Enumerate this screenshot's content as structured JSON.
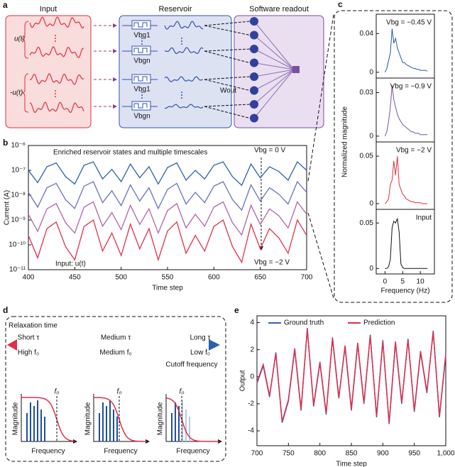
{
  "panel_labels": [
    "a",
    "b",
    "c",
    "d",
    "e"
  ],
  "diagram_a": {
    "input_title": "Input",
    "reservoir_title": "Reservoir",
    "readout_title": "Software readout",
    "input_labels": [
      "u(t)",
      "-u(t)"
    ],
    "gate_labels": [
      "Vbg1",
      "Vbgn",
      "Vbg1",
      "Vbgn"
    ],
    "weight_label": "Wout"
  },
  "panel_c": {
    "ylabel": "Normalized magnitude",
    "xlabel": "Frequency (Hz)"
  },
  "diagram_d": {
    "title": "Relaxation time",
    "tau_labels": [
      "Short τ",
      "Medium τ",
      "Long τ"
    ],
    "f0_labels": [
      "High f₀",
      "Medium f₀",
      "Low f₀"
    ],
    "cutoff_label": "Cutoff frequency",
    "plot_ylabels": [
      "Magnitude",
      "Magnitude",
      "Magnitude"
    ],
    "plot_xlabels": [
      "Frequency",
      "Frequency",
      "Frequency"
    ],
    "plot_markers": [
      "f₀",
      "f₀",
      "f₀"
    ]
  },
  "chart_data": [
    {
      "type": "line",
      "title": "Enriched reservoir states and multiple timescales",
      "annotations": [
        "Vbg = 0 V",
        "Vbg = −2 V",
        "Input: u(t)"
      ],
      "xlabel": "Time step",
      "ylabel": "Current (A)",
      "log_y": true,
      "x": [
        400,
        410,
        420,
        430,
        440,
        450,
        460,
        470,
        480,
        490,
        500,
        510,
        520,
        530,
        540,
        550,
        560,
        570,
        580,
        590,
        600,
        610,
        620,
        630,
        640,
        650,
        660,
        670,
        680,
        690,
        700
      ],
      "series": [
        {
          "color": "#2a62b0",
          "values": [
            1e-07,
            3.2e-08,
            1.4e-07,
            2e-07,
            5.6e-08,
            2.8e-08,
            1.6e-07,
            2.2e-07,
            4.5e-08,
            1.1e-07,
            3.5e-08,
            1.8e-07,
            5e-08,
            1.4e-07,
            2.8e-08,
            1.3e-07,
            2e-07,
            4e-08,
            1e-07,
            4.5e-08,
            1.6e-07,
            2.2e-07,
            5.6e-08,
            2.5e-08,
            1.8e-07,
            5e-08,
            1.4e-07,
            9e-08,
            4e-08,
            2.2e-07,
            1e-07
          ]
        },
        {
          "color": "#6a6fbf",
          "values": [
            1.3e-08,
            3.3e-09,
            2e-08,
            3e-08,
            6.6e-09,
            2.9e-09,
            2.3e-08,
            3.5e-08,
            5e-09,
            1.5e-08,
            3.8e-09,
            2.6e-08,
            5.8e-09,
            2e-08,
            2.9e-09,
            1.7e-08,
            3e-08,
            4.4e-09,
            1.3e-08,
            5e-09,
            2.3e-08,
            3.5e-08,
            6.6e-09,
            2.5e-09,
            2.6e-08,
            5.8e-09,
            2e-08,
            1.1e-08,
            4.4e-09,
            3.5e-08,
            1.3e-08
          ]
        },
        {
          "color": "#b063a8",
          "values": [
            1.7e-09,
            3.5e-10,
            2.8e-09,
            4.6e-09,
            7.8e-10,
            3e-10,
            3.3e-09,
            5.4e-09,
            5.6e-10,
            2e-09,
            4.1e-10,
            3.9e-09,
            6.6e-10,
            2.8e-09,
            3e-10,
            2.4e-09,
            4.6e-09,
            4.8e-10,
            1.7e-09,
            5.6e-10,
            3.3e-09,
            5.4e-09,
            7.8e-10,
            2.5e-10,
            3.9e-09,
            6.6e-10,
            2.8e-09,
            1.5e-09,
            4.8e-10,
            5.4e-09,
            1.7e-09
          ]
        },
        {
          "color": "#e0304a",
          "values": [
            2.4e-10,
            3e-11,
            4.5e-10,
            8.3e-10,
            8.5e-11,
            2.5e-11,
            5.5e-10,
            1e-09,
            5.6e-11,
            3e-10,
            3.7e-11,
            6.8e-10,
            6.9e-11,
            4.5e-10,
            2.5e-11,
            3.6e-10,
            8.3e-10,
            4.6e-11,
            2.4e-10,
            5.6e-11,
            5.5e-10,
            1e-09,
            8.5e-11,
            2e-11,
            6.8e-10,
            6.9e-11,
            4.5e-10,
            1.9e-10,
            4.6e-11,
            1e-09,
            2.4e-10
          ]
        }
      ],
      "xlim": [
        400,
        700
      ],
      "ylim": [
        1e-11,
        1e-06
      ],
      "xticks": [
        400,
        450,
        500,
        550,
        600,
        650,
        700
      ],
      "yticks": [
        {
          "value": 1e-11,
          "label": "10⁻¹¹"
        },
        {
          "value": 1e-10,
          "label": "10⁻¹⁰"
        },
        {
          "value": 1e-09,
          "label": "10⁻⁹"
        },
        {
          "value": 1e-08,
          "label": "10⁻⁸"
        },
        {
          "value": 1e-07,
          "label": "10⁻⁷"
        },
        {
          "value": 1e-06,
          "label": "10⁻⁶"
        }
      ]
    },
    {
      "type": "line",
      "annotation": "Vbg = −0.45 V",
      "x": [
        0,
        0.5,
        1,
        1.5,
        2,
        2.5,
        3,
        3.5,
        4,
        4.5,
        5,
        5.5,
        6,
        6.5,
        7,
        7.5,
        8,
        8.5,
        9,
        9.5,
        10,
        10.5,
        11,
        11.5,
        12
      ],
      "series": [
        {
          "color": "#2456a8",
          "values": [
            0,
            0.004,
            0.012,
            0.02,
            0.045,
            0.03,
            0.035,
            0.025,
            0.02,
            0.015,
            0.01,
            0.01,
            0.008,
            0.007,
            0.006,
            0.005,
            0.004,
            0.004,
            0.003,
            0.003,
            0.002,
            0.002,
            0.002,
            0.002,
            0.001
          ]
        }
      ],
      "xlim": [
        -2.5,
        14
      ],
      "ylim": [
        -0.006,
        0.06
      ],
      "yticks": [
        0,
        0.04
      ]
    },
    {
      "type": "line",
      "annotation": "Vbg = −0.9 V",
      "x": [
        0,
        0.5,
        1,
        1.5,
        2,
        2.5,
        3,
        3.5,
        4,
        4.5,
        5,
        5.5,
        6,
        6.5,
        7,
        7.5,
        8,
        8.5,
        9,
        9.5,
        10,
        10.5,
        11,
        11.5,
        12
      ],
      "series": [
        {
          "color": "#7a52a8",
          "values": [
            0,
            0.003,
            0.01,
            0.02,
            0.035,
            0.025,
            0.02,
            0.015,
            0.012,
            0.01,
            0.008,
            0.007,
            0.006,
            0.005,
            0.004,
            0.003,
            0.003,
            0.002,
            0.002,
            0.002,
            0.001,
            0.001,
            0.001,
            0.001,
            0.001
          ]
        }
      ],
      "xlim": [
        -2.5,
        14
      ],
      "ylim": [
        -0.004,
        0.04
      ],
      "yticks": [
        0,
        0.03
      ]
    },
    {
      "type": "line",
      "annotation": "Vbg = −2 V",
      "x": [
        0,
        0.5,
        1,
        1.5,
        2,
        2.5,
        3,
        3.5,
        4,
        4.5,
        5,
        5.5,
        6,
        6.5,
        7,
        7.5,
        8,
        8.5,
        9,
        9.5,
        10,
        10.5,
        11,
        11.5,
        12
      ],
      "series": [
        {
          "color": "#e0303a",
          "values": [
            0,
            0.002,
            0.005,
            0.02,
            0.025,
            0.045,
            0.03,
            0.05,
            0.02,
            0.015,
            0.01,
            0.008,
            0.005,
            0.004,
            0.003,
            0.002,
            0.002,
            0.001,
            0.001,
            0.001,
            0.001,
            0,
            0,
            0,
            0
          ]
        }
      ],
      "xlim": [
        -2.5,
        14
      ],
      "ylim": [
        -0.006,
        0.065
      ],
      "yticks": [
        0,
        0.05
      ]
    },
    {
      "type": "line",
      "annotation": "Input",
      "x": [
        0,
        0.5,
        1,
        1.5,
        2,
        2.5,
        3,
        3.5,
        4,
        4.5,
        5,
        5.5,
        6,
        6.5,
        7,
        7.5,
        8,
        8.5,
        9,
        9.5,
        10,
        10.5,
        11,
        11.5,
        12
      ],
      "series": [
        {
          "color": "#111111",
          "values": [
            0,
            0,
            0.002,
            0.01,
            0.045,
            0.052,
            0.05,
            0.055,
            0.04,
            0.005,
            0.001,
            0,
            0,
            0,
            0,
            0,
            0,
            0,
            0,
            0,
            0,
            0,
            0,
            0,
            0
          ]
        }
      ],
      "xlim": [
        -2.5,
        14
      ],
      "ylim": [
        -0.006,
        0.065
      ],
      "yticks": [
        0,
        0.05
      ],
      "xticks": [
        0,
        5,
        10
      ]
    },
    {
      "type": "line",
      "xlabel": "Time step",
      "ylabel": "Output",
      "legend": "top",
      "x": [
        700,
        710,
        720,
        730,
        740,
        750,
        760,
        770,
        780,
        790,
        800,
        810,
        820,
        830,
        840,
        850,
        860,
        870,
        880,
        890,
        900,
        910,
        920,
        930,
        940,
        950,
        960,
        970,
        980,
        990,
        1000
      ],
      "series": [
        {
          "name": "Ground truth",
          "color": "#3a5fb0",
          "values": [
            -0.5,
            0.8,
            -1.5,
            1.8,
            -3.4,
            -1.8,
            2.0,
            -2.5,
            3.6,
            -2.2,
            1.0,
            -2.8,
            2.9,
            -1.5,
            2.2,
            -2.5,
            2.4,
            -2.0,
            3.1,
            -3.0,
            2.7,
            -3.5,
            2.5,
            -2.0,
            2.8,
            -2.6,
            1.8,
            -1.2,
            3.4,
            -3.0,
            1.6
          ]
        },
        {
          "name": "Prediction",
          "color": "#e0304a",
          "values": [
            -0.4,
            0.9,
            -1.4,
            1.7,
            -3.3,
            -1.7,
            2.1,
            -2.4,
            3.5,
            -2.1,
            1.1,
            -2.7,
            2.8,
            -1.6,
            2.3,
            -2.4,
            2.5,
            -1.9,
            3.0,
            -2.9,
            2.6,
            -3.4,
            2.6,
            -1.9,
            2.7,
            -2.5,
            1.9,
            -1.1,
            3.3,
            -2.9,
            1.7
          ]
        }
      ],
      "xlim": [
        700,
        1000
      ],
      "ylim": [
        -5.1,
        4.5
      ],
      "xticks": [
        700,
        750,
        800,
        850,
        900,
        950,
        {
          "value": 1000,
          "label": "1,000"
        }
      ],
      "yticks": [
        -4,
        -2,
        0,
        2,
        4
      ]
    }
  ]
}
